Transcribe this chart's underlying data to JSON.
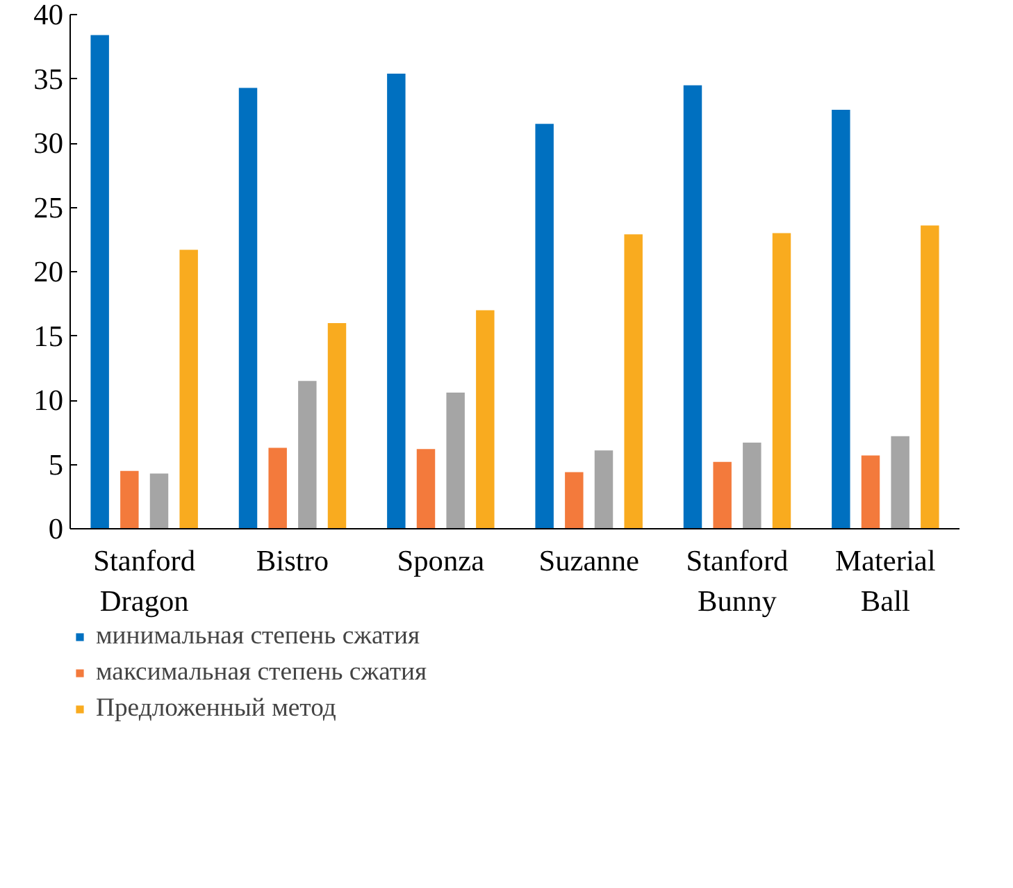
{
  "chart_data": {
    "type": "bar",
    "categories": [
      "Stanford Dragon",
      "Bistro",
      "Sponza",
      "Suzanne",
      "Stanford Bunny",
      "Material Ball"
    ],
    "series": [
      {
        "name": "минимальная степень сжатия",
        "color": "#0070c0",
        "values": [
          38.4,
          34.3,
          35.4,
          31.5,
          34.5,
          32.6
        ]
      },
      {
        "name": "максимальная степень сжатия",
        "color": "#f37a3c",
        "values": [
          4.5,
          6.3,
          6.2,
          4.4,
          5.2,
          5.7
        ]
      },
      {
        "color": "#a5a5a5",
        "values": [
          4.3,
          11.5,
          10.6,
          6.1,
          6.7,
          7.2
        ]
      },
      {
        "name": "Предложенный метод",
        "color": "#f9ab1f",
        "values": [
          21.7,
          16.0,
          17.0,
          22.9,
          23.0,
          23.6
        ]
      }
    ],
    "ylim": [
      0,
      40
    ],
    "yticks": [
      0,
      5,
      10,
      15,
      20,
      25,
      30,
      35,
      40
    ],
    "grid": false,
    "legend": "bottom"
  }
}
